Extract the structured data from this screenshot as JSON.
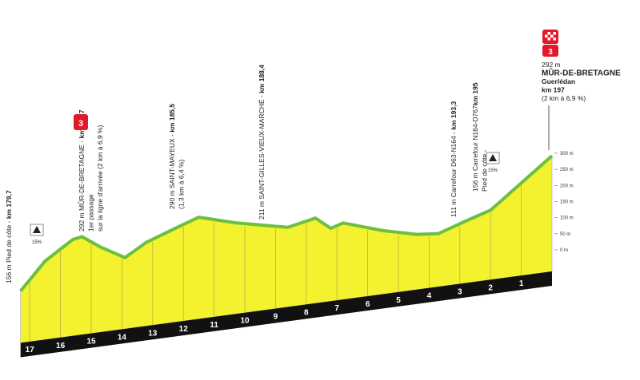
{
  "chart_data": {
    "type": "area",
    "x": [
      17.3,
      16.5,
      15.6,
      15.3,
      14.7,
      13.9,
      13.2,
      12.2,
      11.5,
      10.3,
      8.6,
      7.7,
      7.2,
      6.8,
      5.5,
      4.4,
      3.7,
      2.9,
      2.0,
      0
    ],
    "values": [
      156,
      236,
      288,
      292,
      250,
      204,
      240,
      270,
      290,
      253,
      211,
      225,
      185,
      195,
      150,
      120,
      111,
      133,
      156,
      292
    ],
    "color": "#f4f22e",
    "line_color": "#6cbf3f",
    "xlim": [
      17.3,
      0
    ],
    "xticks": [
      17,
      16,
      15,
      14,
      13,
      12,
      11,
      10,
      9,
      8,
      7,
      6,
      5,
      4,
      3,
      2,
      1
    ],
    "ylim": [
      0,
      300
    ],
    "yticks": [
      {
        "value": 0,
        "label": "0 m"
      },
      {
        "value": 50,
        "label": "50 m"
      },
      {
        "value": 100,
        "label": "100 m"
      },
      {
        "value": 150,
        "label": "150 m"
      },
      {
        "value": 200,
        "label": "200 m"
      },
      {
        "value": 250,
        "label": "250 m"
      },
      {
        "value": 300,
        "label": "300 m"
      }
    ],
    "annotations": [
      {
        "lines": [
          "156 m Pied de côte - "
        ],
        "km": "km 179,7"
      },
      {
        "lines": [
          "292 m MÛR-DE-BRETAGNE - ",
          "1er passage",
          "sur la ligne d'arrivée (2 km à 6,9 %)"
        ],
        "km": "km 181,7",
        "badge": "3"
      },
      {
        "lines": [
          "290 m SAINT-MAYEUX - ",
          "(1,3 km à 6,4 %)"
        ],
        "km": "km 185,5"
      },
      {
        "lines": [
          "211 m SAINT-GILLES-VIEUX-MARCHÉ - "
        ],
        "km": "km 188,4"
      },
      {
        "lines": [
          "111 m Carrefour D63-N164 - "
        ],
        "km": "km 193,3"
      },
      {
        "lines": [
          "156 m Carrefour N164-D767",
          "Pied de côte - "
        ],
        "km": "km 195"
      }
    ],
    "gradient_signs": [
      "15%",
      "15%"
    ],
    "finish": {
      "badge": "3",
      "lines": [
        "292 m",
        "MÛR-DE-BRETAGNE",
        "Guerlédan",
        "km 197",
        "(2 km à 6,9 %)"
      ]
    }
  }
}
